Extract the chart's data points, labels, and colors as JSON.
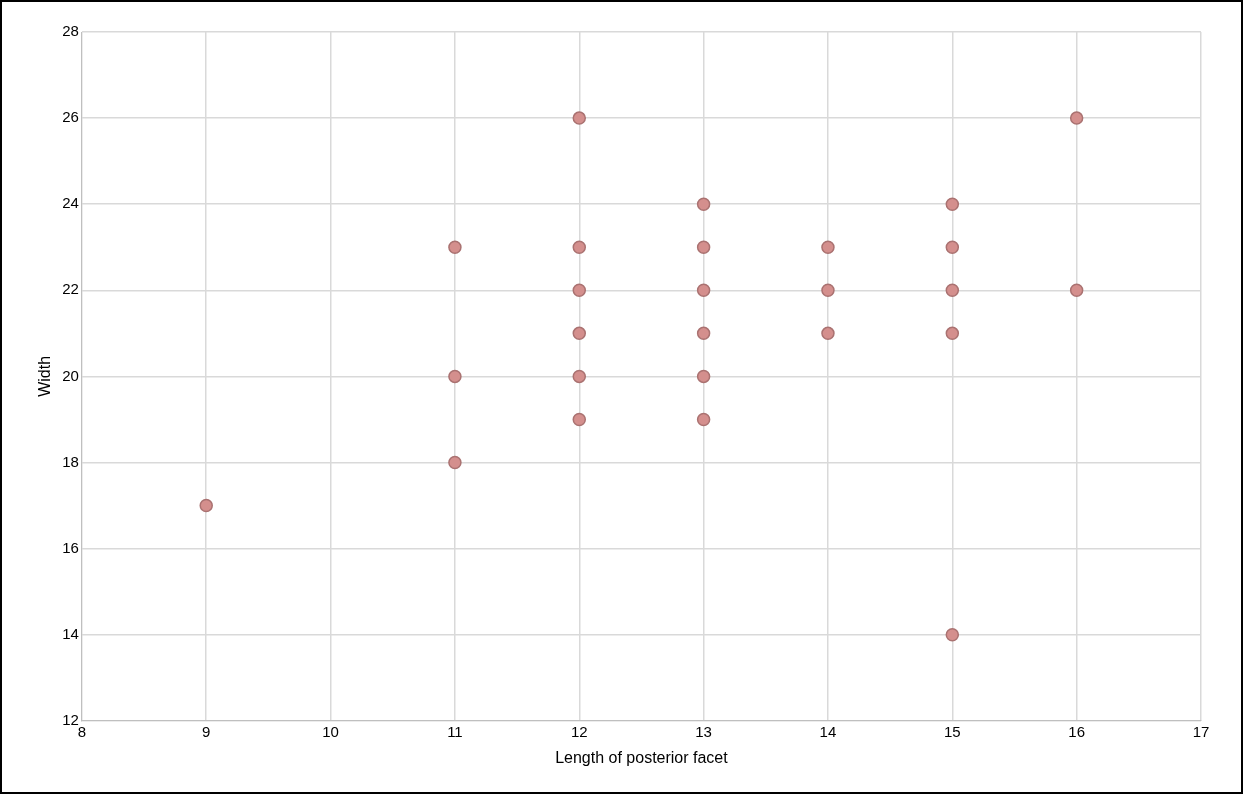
{
  "chart_data": {
    "type": "scatter",
    "xlabel": "Length of posterior facet",
    "ylabel": "Width",
    "series": [
      {
        "color": "#d48f8d",
        "x": [
          9,
          11,
          11,
          11,
          12,
          12,
          12,
          12,
          12,
          12,
          13,
          13,
          13,
          13,
          13,
          13,
          14,
          14,
          14,
          15,
          15,
          15,
          15,
          15,
          16,
          16
        ],
        "values": [
          17,
          23,
          20,
          18,
          26,
          23,
          22,
          21,
          20,
          19,
          24,
          23,
          22,
          21,
          20,
          19,
          23,
          22,
          21,
          24,
          23,
          22,
          21,
          14,
          26,
          22
        ]
      }
    ],
    "xlim": [
      8,
      17
    ],
    "xticks": [
      8,
      9,
      10,
      11,
      12,
      13,
      14,
      15,
      16,
      17
    ],
    "ylim": [
      12,
      28
    ],
    "yticks": [
      12,
      14,
      16,
      18,
      20,
      22,
      24,
      26,
      28
    ],
    "grid": true,
    "marker": "circle",
    "legend": false
  }
}
